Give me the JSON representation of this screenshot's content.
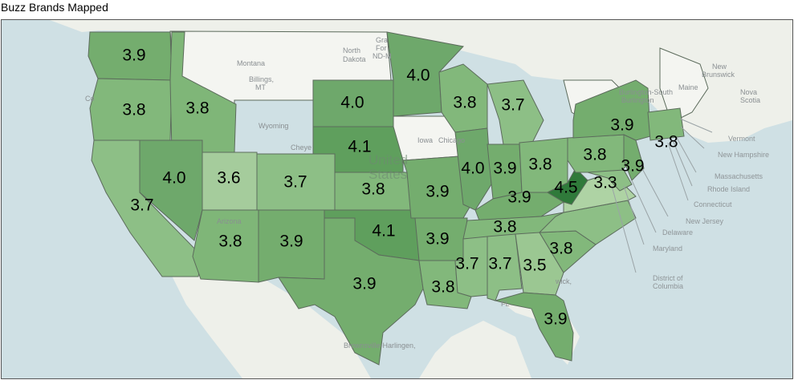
{
  "title": "Buzz Brands Mapped",
  "colors": {
    "water": "#cfe0e4",
    "land": "#eef0ea",
    "unshaded": "#f4f5f1",
    "scale_low": "#b9d8b0",
    "scale_high": "#2f7a3a"
  },
  "map_data": {
    "type": "choropleth",
    "value_range": [
      3.3,
      4.5
    ],
    "states": [
      {
        "id": "WA",
        "value": "3.9"
      },
      {
        "id": "OR",
        "value": "3.8"
      },
      {
        "id": "ID",
        "value": "3.8"
      },
      {
        "id": "CA",
        "value": "3.7"
      },
      {
        "id": "NV",
        "value": "4.0"
      },
      {
        "id": "UT",
        "value": "3.6"
      },
      {
        "id": "AZ",
        "value": "3.8"
      },
      {
        "id": "CO",
        "value": "3.7"
      },
      {
        "id": "NM",
        "value": "3.9"
      },
      {
        "id": "MN",
        "value": "4.0"
      },
      {
        "id": "SD",
        "value": "4.0"
      },
      {
        "id": "NE",
        "value": "4.1"
      },
      {
        "id": "KS",
        "value": "3.8"
      },
      {
        "id": "OK",
        "value": "4.1"
      },
      {
        "id": "TX",
        "value": "3.9"
      },
      {
        "id": "MO",
        "value": "3.9"
      },
      {
        "id": "AR",
        "value": "3.9"
      },
      {
        "id": "LA",
        "value": "3.8"
      },
      {
        "id": "WI",
        "value": "3.8"
      },
      {
        "id": "MI",
        "value": "3.7"
      },
      {
        "id": "IL",
        "value": "4.0"
      },
      {
        "id": "IN",
        "value": "3.9"
      },
      {
        "id": "OH",
        "value": "3.8"
      },
      {
        "id": "KY",
        "value": "3.9"
      },
      {
        "id": "TN",
        "value": "3.8"
      },
      {
        "id": "MS",
        "value": "3.7"
      },
      {
        "id": "AL",
        "value": "3.7"
      },
      {
        "id": "GA",
        "value": "3.5"
      },
      {
        "id": "FL",
        "value": "3.9"
      },
      {
        "id": "SC",
        "value": "3.8"
      },
      {
        "id": "WV",
        "value": "4.5"
      },
      {
        "id": "VA",
        "value": "3.3"
      },
      {
        "id": "PA",
        "value": "3.8"
      },
      {
        "id": "NY",
        "value": "3.9"
      },
      {
        "id": "NJ",
        "value": "3.9"
      },
      {
        "id": "CT",
        "value": "3.8"
      }
    ]
  },
  "basemap_labels": {
    "country": [
      "United",
      "States"
    ],
    "cities": [
      "Montana",
      "Billings,",
      "MT",
      "Wyoming",
      "Cheye",
      "North",
      "Dakota",
      "Gra",
      "For",
      "ND-M",
      "Iowa",
      "Chicago",
      "Burlington-South",
      "Burlington",
      "Maine",
      "New",
      "Brunswick",
      "Nova",
      "Scotia",
      "Arizona",
      "Brownsville-Harlingen,",
      "FL",
      "wick,",
      "Co"
    ],
    "northeast": [
      "Vermont",
      "New Hampshire",
      "Massachusetts",
      "Rhode Island",
      "Connecticut",
      "New Jersey",
      "Delaware",
      "Maryland",
      "District of",
      "Columbia"
    ]
  }
}
